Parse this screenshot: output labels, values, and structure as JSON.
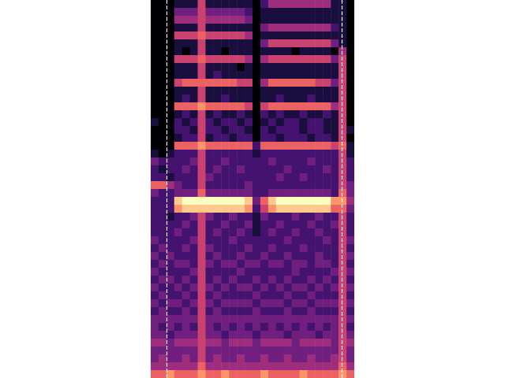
{
  "chart_data": {
    "type": "heatmap",
    "tick_labels": false,
    "xlim": [
      0,
      26
    ],
    "ylim": [
      0,
      48
    ],
    "zlim": [
      0,
      9
    ],
    "markers": [
      2,
      24.4
    ],
    "cells": [
      [
        0,
        0,
        0,
        1,
        1,
        1,
        5,
        1,
        1,
        1,
        1,
        1,
        1,
        0,
        2,
        4,
        4,
        4,
        4,
        4,
        4,
        4,
        4,
        1,
        1,
        0
      ],
      [
        0,
        0,
        0,
        3,
        3,
        3,
        5,
        3,
        3,
        3,
        3,
        3,
        2,
        0,
        1,
        1,
        1,
        1,
        1,
        1,
        1,
        1,
        1,
        1,
        1,
        0
      ],
      [
        0,
        0,
        0,
        4,
        4,
        4,
        5,
        4,
        4,
        4,
        4,
        4,
        3,
        0,
        1,
        1,
        1,
        1,
        1,
        1,
        1,
        1,
        1,
        1,
        1,
        0
      ],
      [
        0,
        0,
        0,
        1,
        1,
        1,
        5,
        1,
        1,
        1,
        1,
        1,
        1,
        0,
        3,
        4,
        4,
        4,
        4,
        4,
        4,
        4,
        4,
        2,
        1,
        0
      ],
      [
        0,
        0,
        0,
        5,
        5,
        5,
        6,
        5,
        5,
        5,
        5,
        5,
        4,
        0,
        1,
        1,
        1,
        1,
        1,
        1,
        1,
        1,
        1,
        1,
        1,
        0
      ],
      [
        0,
        0,
        0,
        1,
        1,
        1,
        5,
        1,
        1,
        1,
        1,
        1,
        1,
        0,
        3,
        5,
        5,
        5,
        5,
        5,
        5,
        5,
        5,
        3,
        1,
        0
      ],
      [
        0,
        0,
        0,
        1,
        0,
        1,
        5,
        1,
        1,
        0,
        1,
        1,
        1,
        0,
        1,
        1,
        1,
        1,
        0,
        1,
        1,
        1,
        1,
        0,
        4,
        0
      ],
      [
        0,
        0,
        0,
        5,
        5,
        5,
        6,
        5,
        5,
        5,
        5,
        5,
        4,
        0,
        4,
        5,
        5,
        5,
        5,
        5,
        5,
        5,
        5,
        3,
        5,
        0
      ],
      [
        0,
        0,
        0,
        1,
        1,
        1,
        5,
        1,
        1,
        1,
        1,
        0,
        1,
        0,
        1,
        1,
        1,
        1,
        1,
        1,
        1,
        1,
        1,
        1,
        5,
        0
      ],
      [
        0,
        0,
        0,
        1,
        1,
        1,
        5,
        1,
        2,
        1,
        1,
        1,
        1,
        0,
        1,
        1,
        1,
        1,
        1,
        1,
        1,
        1,
        1,
        1,
        5,
        0
      ],
      [
        0,
        0,
        0,
        5,
        6,
        6,
        6,
        6,
        6,
        6,
        6,
        5,
        5,
        0,
        4,
        6,
        6,
        6,
        6,
        6,
        6,
        5,
        5,
        3,
        5,
        0
      ],
      [
        0,
        0,
        0,
        1,
        1,
        1,
        5,
        1,
        1,
        1,
        1,
        1,
        1,
        0,
        1,
        1,
        1,
        1,
        1,
        1,
        1,
        1,
        1,
        1,
        5,
        0
      ],
      [
        0,
        0,
        0,
        1,
        2,
        1,
        5,
        1,
        1,
        2,
        1,
        1,
        1,
        0,
        1,
        1,
        2,
        1,
        1,
        1,
        2,
        1,
        1,
        1,
        5,
        0
      ],
      [
        0,
        0,
        0,
        6,
        6,
        6,
        7,
        6,
        6,
        6,
        6,
        6,
        5,
        0,
        5,
        6,
        6,
        6,
        6,
        6,
        6,
        6,
        6,
        4,
        5,
        0
      ],
      [
        0,
        0,
        0,
        1,
        2,
        1,
        5,
        1,
        2,
        1,
        1,
        2,
        1,
        0,
        2,
        1,
        2,
        1,
        1,
        2,
        1,
        1,
        2,
        1,
        5,
        0
      ],
      [
        1,
        0,
        0,
        2,
        1,
        2,
        5,
        2,
        1,
        2,
        2,
        1,
        2,
        0,
        1,
        2,
        1,
        2,
        2,
        1,
        2,
        2,
        1,
        1,
        5,
        0
      ],
      [
        0,
        0,
        0,
        2,
        2,
        1,
        5,
        2,
        2,
        1,
        2,
        2,
        1,
        0,
        2,
        1,
        2,
        2,
        2,
        1,
        2,
        2,
        1,
        1,
        5,
        1
      ],
      [
        0,
        0,
        0,
        1,
        2,
        2,
        5,
        1,
        2,
        2,
        1,
        2,
        2,
        0,
        2,
        2,
        1,
        2,
        2,
        2,
        1,
        2,
        2,
        1,
        5,
        0
      ],
      [
        0,
        0,
        0,
        6,
        6,
        6,
        7,
        6,
        6,
        6,
        6,
        6,
        6,
        2,
        6,
        6,
        6,
        6,
        6,
        6,
        6,
        6,
        6,
        5,
        6,
        1
      ],
      [
        1,
        0,
        1,
        2,
        2,
        2,
        5,
        2,
        2,
        2,
        2,
        2,
        2,
        1,
        2,
        2,
        2,
        2,
        2,
        2,
        2,
        2,
        2,
        2,
        5,
        1
      ],
      [
        3,
        2,
        2,
        2,
        2,
        3,
        5,
        2,
        2,
        3,
        2,
        2,
        2,
        2,
        2,
        3,
        2,
        2,
        2,
        2,
        3,
        2,
        2,
        2,
        5,
        2
      ],
      [
        2,
        1,
        2,
        2,
        3,
        2,
        5,
        2,
        3,
        2,
        2,
        3,
        2,
        2,
        2,
        2,
        2,
        3,
        2,
        2,
        2,
        2,
        3,
        2,
        5,
        2
      ],
      [
        2,
        2,
        1,
        2,
        2,
        2,
        5,
        3,
        2,
        2,
        2,
        2,
        2,
        2,
        2,
        2,
        3,
        2,
        2,
        3,
        2,
        2,
        2,
        2,
        5,
        2
      ],
      [
        6,
        6,
        4,
        3,
        2,
        2,
        5,
        2,
        2,
        2,
        2,
        2,
        3,
        2,
        2,
        2,
        2,
        2,
        2,
        2,
        2,
        2,
        2,
        2,
        5,
        3
      ],
      [
        3,
        2,
        2,
        3,
        3,
        3,
        6,
        3,
        3,
        3,
        3,
        3,
        3,
        2,
        2,
        3,
        3,
        3,
        3,
        3,
        3,
        3,
        3,
        2,
        6,
        3
      ],
      [
        2,
        2,
        2,
        8,
        9,
        9,
        9,
        9,
        9,
        9,
        9,
        9,
        8,
        3,
        6,
        8,
        9,
        9,
        9,
        9,
        9,
        9,
        9,
        7,
        7,
        4
      ],
      [
        2,
        2,
        2,
        7,
        8,
        8,
        8,
        8,
        8,
        8,
        8,
        8,
        7,
        2,
        5,
        7,
        8,
        8,
        8,
        8,
        8,
        8,
        8,
        6,
        6,
        3
      ],
      [
        2,
        2,
        1,
        2,
        2,
        3,
        5,
        3,
        2,
        2,
        3,
        2,
        2,
        1,
        3,
        2,
        2,
        2,
        3,
        2,
        2,
        3,
        2,
        2,
        5,
        2
      ],
      [
        2,
        2,
        2,
        2,
        3,
        2,
        5,
        2,
        2,
        3,
        2,
        2,
        3,
        1,
        2,
        2,
        3,
        2,
        2,
        2,
        3,
        2,
        2,
        3,
        5,
        2
      ],
      [
        2,
        2,
        2,
        3,
        2,
        2,
        5,
        2,
        3,
        2,
        2,
        3,
        2,
        1,
        2,
        3,
        2,
        2,
        3,
        2,
        2,
        3,
        2,
        2,
        5,
        2
      ],
      [
        3,
        2,
        2,
        2,
        2,
        3,
        5,
        2,
        2,
        2,
        3,
        2,
        2,
        2,
        2,
        2,
        2,
        3,
        2,
        2,
        2,
        2,
        3,
        2,
        5,
        3
      ],
      [
        2,
        3,
        2,
        2,
        3,
        2,
        5,
        3,
        2,
        2,
        2,
        2,
        3,
        2,
        2,
        3,
        2,
        2,
        2,
        3,
        2,
        2,
        2,
        2,
        5,
        2
      ],
      [
        3,
        2,
        3,
        2,
        2,
        2,
        5,
        2,
        3,
        2,
        2,
        3,
        2,
        2,
        3,
        2,
        2,
        3,
        2,
        2,
        2,
        3,
        2,
        2,
        5,
        3
      ],
      [
        2,
        3,
        2,
        3,
        3,
        2,
        5,
        3,
        2,
        3,
        3,
        2,
        3,
        3,
        2,
        3,
        3,
        2,
        3,
        3,
        2,
        3,
        3,
        2,
        5,
        2
      ],
      [
        3,
        2,
        2,
        2,
        2,
        3,
        5,
        2,
        2,
        2,
        2,
        3,
        2,
        2,
        2,
        2,
        2,
        2,
        3,
        2,
        2,
        2,
        2,
        3,
        5,
        3
      ],
      [
        2,
        3,
        3,
        2,
        3,
        2,
        5,
        2,
        3,
        2,
        3,
        2,
        2,
        3,
        2,
        3,
        2,
        3,
        2,
        2,
        3,
        2,
        3,
        2,
        5,
        2
      ],
      [
        3,
        2,
        2,
        3,
        2,
        3,
        5,
        3,
        2,
        3,
        2,
        3,
        3,
        2,
        3,
        2,
        3,
        2,
        3,
        3,
        2,
        3,
        2,
        3,
        5,
        3
      ],
      [
        2,
        3,
        2,
        2,
        3,
        2,
        5,
        2,
        3,
        2,
        2,
        2,
        2,
        3,
        2,
        2,
        2,
        3,
        2,
        2,
        3,
        2,
        2,
        2,
        5,
        2
      ],
      [
        3,
        2,
        3,
        3,
        2,
        3,
        5,
        3,
        2,
        3,
        3,
        3,
        3,
        2,
        3,
        3,
        3,
        2,
        3,
        3,
        2,
        3,
        3,
        3,
        5,
        3
      ],
      [
        2,
        3,
        2,
        2,
        3,
        2,
        5,
        2,
        3,
        2,
        2,
        2,
        2,
        3,
        2,
        2,
        2,
        3,
        2,
        2,
        3,
        2,
        2,
        2,
        5,
        2
      ],
      [
        3,
        3,
        3,
        3,
        3,
        3,
        5,
        3,
        3,
        3,
        3,
        3,
        3,
        3,
        3,
        3,
        3,
        3,
        3,
        3,
        3,
        3,
        3,
        3,
        5,
        3
      ],
      [
        3,
        2,
        3,
        2,
        3,
        2,
        5,
        3,
        2,
        3,
        2,
        3,
        2,
        3,
        2,
        3,
        2,
        3,
        2,
        3,
        2,
        3,
        2,
        3,
        5,
        2
      ],
      [
        3,
        3,
        2,
        3,
        3,
        3,
        5,
        3,
        3,
        2,
        3,
        3,
        3,
        2,
        3,
        3,
        3,
        2,
        3,
        3,
        3,
        2,
        3,
        3,
        5,
        3
      ],
      [
        4,
        4,
        3,
        4,
        4,
        4,
        5,
        4,
        4,
        3,
        4,
        4,
        4,
        3,
        4,
        4,
        4,
        4,
        3,
        4,
        4,
        4,
        4,
        3,
        5,
        4
      ],
      [
        3,
        3,
        3,
        3,
        3,
        3,
        5,
        3,
        3,
        3,
        3,
        3,
        3,
        3,
        3,
        3,
        3,
        3,
        3,
        3,
        3,
        3,
        3,
        3,
        5,
        3
      ],
      [
        3,
        4,
        3,
        3,
        4,
        3,
        5,
        3,
        4,
        3,
        3,
        4,
        3,
        3,
        4,
        3,
        3,
        4,
        3,
        3,
        4,
        3,
        3,
        4,
        5,
        3
      ],
      [
        4,
        4,
        4,
        4,
        4,
        4,
        6,
        4,
        4,
        4,
        4,
        4,
        4,
        4,
        4,
        4,
        4,
        4,
        4,
        4,
        4,
        4,
        4,
        4,
        6,
        4
      ],
      [
        6,
        6,
        7,
        6,
        6,
        6,
        7,
        6,
        6,
        7,
        6,
        6,
        6,
        6,
        7,
        6,
        6,
        6,
        6,
        7,
        6,
        6,
        6,
        6,
        7,
        6
      ]
    ]
  }
}
